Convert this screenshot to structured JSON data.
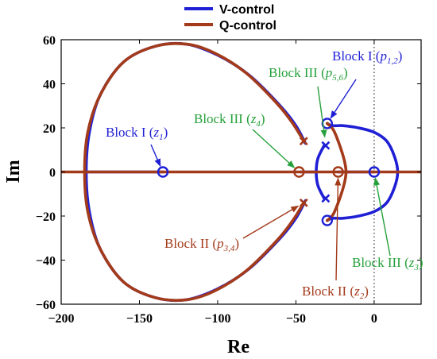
{
  "chart_data": {
    "type": "line",
    "title": "",
    "xlabel": "Re",
    "ylabel": "Im",
    "xlim": [
      -200,
      30
    ],
    "ylim": [
      -60,
      60
    ],
    "xticks": [
      -200,
      -150,
      -100,
      -50,
      0
    ],
    "yticks": [
      -60,
      -40,
      -20,
      0,
      20,
      40,
      60
    ],
    "xtick_labels": [
      "−200",
      "−150",
      "−100",
      "−50",
      "0"
    ],
    "ytick_labels": [
      "−60",
      "−40",
      "−20",
      "0",
      "20",
      "40",
      "60"
    ],
    "legend": {
      "placement": "top-center",
      "entries": [
        {
          "label": "V-control",
          "color": "#1f1fd6"
        },
        {
          "label": "Q-control",
          "color": "#a33a1a"
        }
      ]
    },
    "series": [
      {
        "name": "V-control",
        "color": "#1f1fd6",
        "branches": [
          {
            "x": [
              -44,
              -50,
              -60,
              -80,
              -100,
              -120,
              -140,
              -160,
              -175,
              -182,
              -184,
              -182,
              -175,
              -160,
              -140,
              -120,
              -100,
              -80,
              -60,
              -50,
              -44
            ],
            "y": [
              13,
              21,
              30,
              44,
              53,
              58,
              57,
              50,
              35,
              18,
              0,
              -18,
              -35,
              -50,
              -57,
              -58,
              -53,
              -44,
              -30,
              -21,
              -13
            ]
          },
          {
            "x": [
              -30,
              -27,
              -20,
              -10,
              0,
              8,
              13,
              15,
              13,
              8,
              0,
              -10,
              -20,
              -27,
              -30
            ],
            "y": [
              22,
              21,
              21,
              20,
              18,
              14,
              7,
              0,
              -7,
              -14,
              -18,
              -20,
              -21,
              -21,
              -22
            ]
          },
          {
            "x": [
              -32,
              -36,
              -37,
              -36,
              -32
            ],
            "y": [
              12,
              6,
              0,
              -6,
              -12
            ]
          },
          {
            "x": [
              -185,
              -135
            ],
            "y": [
              0,
              0
            ]
          },
          {
            "x": [
              -47,
              -37
            ],
            "y": [
              0,
              0
            ]
          },
          {
            "x": [
              -23,
              0
            ],
            "y": [
              0,
              0
            ]
          }
        ],
        "poles": [
          [
            -31,
            12
          ],
          [
            -31,
            -12
          ]
        ],
        "zeros": [
          [
            -135,
            0
          ],
          [
            -30,
            22
          ],
          [
            -30,
            -22
          ],
          [
            0,
            0
          ]
        ]
      },
      {
        "name": "Q-control",
        "color": "#a33a1a",
        "branches": [
          {
            "x": [
              -45,
              -52,
              -62,
              -82,
              -102,
              -120,
              -140,
              -160,
              -175,
              -183,
              -185,
              -183,
              -175,
              -160,
              -140,
              -120,
              -102,
              -82,
              -62,
              -52,
              -45
            ],
            "y": [
              14,
              22,
              31,
              45,
              54,
              58,
              57,
              50,
              35,
              18,
              0,
              -18,
              -35,
              -50,
              -57,
              -58,
              -54,
              -45,
              -31,
              -22,
              -14
            ]
          },
          {
            "x": [
              -30,
              -26,
              -22,
              -19,
              -18,
              -19,
              -22,
              -26,
              -30
            ],
            "y": [
              22,
              19,
              12,
              5,
              0,
              -5,
              -12,
              -19,
              -22
            ]
          },
          {
            "x": [
              -200,
              30
            ],
            "y": [
              0,
              0
            ]
          }
        ],
        "poles": [
          [
            -45,
            14
          ],
          [
            -45,
            -14
          ]
        ],
        "zeros": [
          [
            -23,
            0
          ],
          [
            -48,
            0
          ]
        ]
      }
    ],
    "annotations": [
      {
        "prefix": "Block I (",
        "var": "z",
        "sub": "1",
        "suffix": ")",
        "color": "#1f1fd6",
        "target": [
          -135,
          0
        ]
      },
      {
        "prefix": "Block I (",
        "var": "p",
        "sub": "1,2",
        "suffix": ")",
        "color": "#1f1fd6",
        "target": [
          -30,
          22
        ]
      },
      {
        "prefix": "Block III (",
        "var": "p",
        "sub": "5,6",
        "suffix": ")",
        "color": "#26a03a",
        "target": [
          -31,
          13
        ]
      },
      {
        "prefix": "Block III (",
        "var": "z",
        "sub": "4",
        "suffix": ")",
        "color": "#26a03a",
        "target": [
          -48,
          0
        ]
      },
      {
        "prefix": "Block II (",
        "var": "p",
        "sub": "3,4",
        "suffix": ")",
        "color": "#a33a1a",
        "target": [
          -45,
          -14
        ]
      },
      {
        "prefix": "Block II (",
        "var": "z",
        "sub": "2",
        "suffix": ")",
        "color": "#a33a1a",
        "target": [
          -23,
          0
        ]
      },
      {
        "prefix": "Block III (",
        "var": "z",
        "sub": "3",
        "suffix": ")",
        "color": "#26a03a",
        "target": [
          0,
          0
        ]
      }
    ],
    "grid": false
  }
}
